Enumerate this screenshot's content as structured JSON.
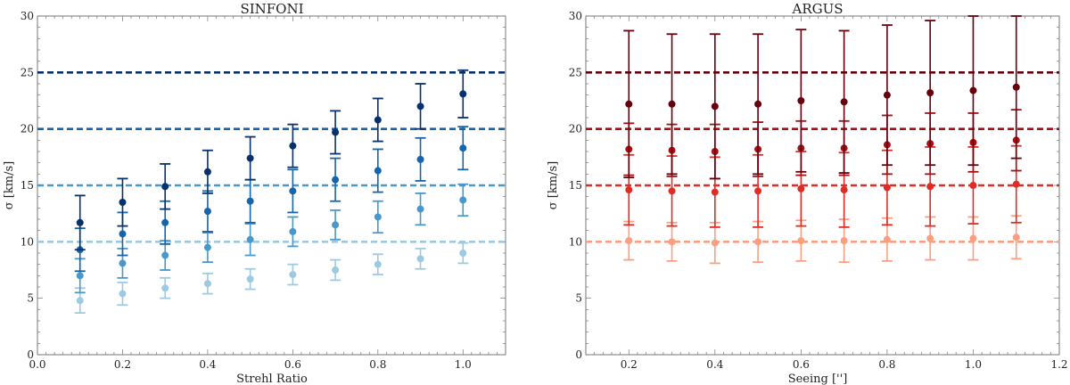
{
  "chart_data": [
    {
      "type": "scatter",
      "title": "SINFONI",
      "xlabel": "Strehl Ratio",
      "ylabel": "σ [km/s]",
      "xlim": [
        0.0,
        1.1
      ],
      "ylim": [
        0,
        30
      ],
      "xticks": [
        "0.0",
        "0.2",
        "0.4",
        "0.6",
        "0.8",
        "1.0"
      ],
      "yticks": [
        "0",
        "5",
        "10",
        "15",
        "20",
        "25",
        "30"
      ],
      "grid": false,
      "error_bars": true,
      "reference_lines": [
        {
          "y": 10,
          "color": "#9ecae1"
        },
        {
          "y": 15,
          "color": "#4a98c9"
        },
        {
          "y": 20,
          "color": "#1764ab"
        },
        {
          "y": 25,
          "color": "#08306b"
        }
      ],
      "x": [
        0.1,
        0.2,
        0.3,
        0.4,
        0.5,
        0.6,
        0.7,
        0.8,
        0.9,
        1.0
      ],
      "series": [
        {
          "color": "#9ecae1",
          "values": [
            4.8,
            5.4,
            5.9,
            6.3,
            6.7,
            7.1,
            7.5,
            8.0,
            8.5,
            9.0
          ],
          "err": [
            1.1,
            1.0,
            0.9,
            0.9,
            0.9,
            0.9,
            0.9,
            0.9,
            0.9,
            0.9
          ]
        },
        {
          "color": "#4a98c9",
          "values": [
            7.0,
            8.1,
            8.8,
            9.5,
            10.2,
            10.9,
            11.5,
            12.2,
            12.9,
            13.7
          ],
          "err": [
            1.5,
            1.3,
            1.3,
            1.3,
            1.4,
            1.3,
            1.3,
            1.4,
            1.4,
            1.4
          ]
        },
        {
          "color": "#1764ab",
          "values": [
            9.3,
            10.7,
            11.7,
            12.7,
            13.6,
            14.5,
            15.5,
            16.3,
            17.3,
            18.3
          ],
          "err": [
            1.9,
            1.9,
            1.9,
            1.8,
            1.9,
            1.9,
            1.9,
            1.9,
            1.9,
            1.9
          ]
        },
        {
          "color": "#08306b",
          "values": [
            11.7,
            13.5,
            14.9,
            16.2,
            17.4,
            18.5,
            19.7,
            20.8,
            22.0,
            23.1
          ],
          "err": [
            2.4,
            2.1,
            2.0,
            1.9,
            1.9,
            1.9,
            1.9,
            1.9,
            2.0,
            2.1
          ]
        }
      ]
    },
    {
      "type": "scatter",
      "title": "ARGUS",
      "xlabel": "Seeing ['']",
      "ylabel": "σ [km/s]",
      "xlim": [
        0.1,
        1.2
      ],
      "ylim": [
        0,
        30
      ],
      "xticks": [
        "0.2",
        "0.4",
        "0.6",
        "0.8",
        "1.0",
        "1.2"
      ],
      "yticks": [
        "0",
        "5",
        "10",
        "15",
        "20",
        "25",
        "30"
      ],
      "grid": false,
      "error_bars": true,
      "reference_lines": [
        {
          "y": 10,
          "color": "#fc9f81"
        },
        {
          "y": 15,
          "color": "#de2d26"
        },
        {
          "y": 20,
          "color": "#a50f15"
        },
        {
          "y": 25,
          "color": "#67000d"
        }
      ],
      "x": [
        0.2,
        0.3,
        0.4,
        0.5,
        0.6,
        0.7,
        0.8,
        0.9,
        1.0,
        1.1
      ],
      "series": [
        {
          "color": "#fc9f81",
          "values": [
            10.1,
            10.0,
            9.9,
            10.0,
            10.1,
            10.1,
            10.2,
            10.3,
            10.3,
            10.4
          ],
          "err": [
            1.7,
            1.7,
            1.8,
            1.8,
            1.8,
            1.9,
            1.9,
            1.9,
            1.9,
            1.9
          ]
        },
        {
          "color": "#de2d26",
          "values": [
            14.6,
            14.5,
            14.4,
            14.5,
            14.7,
            14.6,
            14.8,
            14.9,
            15.0,
            15.1
          ],
          "err": [
            3.1,
            3.1,
            3.1,
            3.2,
            3.3,
            3.3,
            3.3,
            3.5,
            3.4,
            3.4
          ]
        },
        {
          "color": "#a50f15",
          "values": [
            18.2,
            18.1,
            18.0,
            18.2,
            18.3,
            18.3,
            18.6,
            18.7,
            18.8,
            19.0
          ],
          "err": [
            2.3,
            2.3,
            2.4,
            2.4,
            2.4,
            2.4,
            2.6,
            2.7,
            2.6,
            2.7
          ]
        },
        {
          "color": "#67000d",
          "values": [
            22.2,
            22.2,
            22.0,
            22.2,
            22.5,
            22.4,
            23.0,
            23.2,
            23.4,
            23.7
          ],
          "err": [
            6.5,
            6.2,
            6.4,
            6.2,
            6.3,
            6.3,
            6.2,
            6.4,
            6.6,
            6.3
          ]
        }
      ]
    }
  ]
}
